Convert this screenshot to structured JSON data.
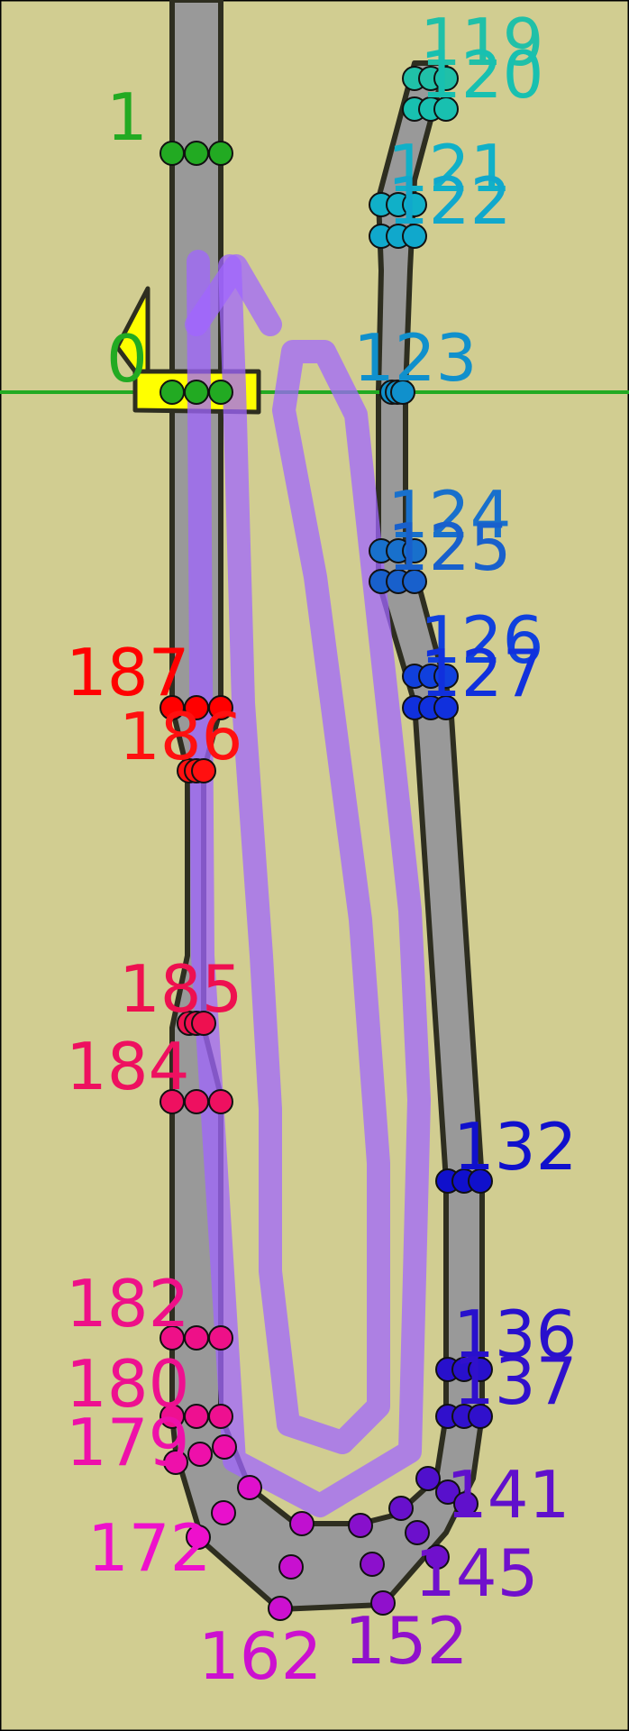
{
  "colors": {
    "background": "#d1cd91",
    "track_fill": "#999999",
    "track_edge": "#2e2e20",
    "finish_line": "#22aa22",
    "start_marker": "#ffff00",
    "path_arrow": "#a066ff"
  },
  "sector_labels": [
    {
      "key": "0",
      "text": "0",
      "color": "#22aa22"
    },
    {
      "key": "1",
      "text": "1",
      "color": "#22aa22"
    },
    {
      "key": "119",
      "text": "119",
      "color": "#20c0a8"
    },
    {
      "key": "120",
      "text": "120",
      "color": "#18c0b0"
    },
    {
      "key": "121",
      "text": "121",
      "color": "#10b0c8"
    },
    {
      "key": "122",
      "text": "122",
      "color": "#10a8cc"
    },
    {
      "key": "123",
      "text": "123",
      "color": "#1090cc"
    },
    {
      "key": "124",
      "text": "124",
      "color": "#1870cc"
    },
    {
      "key": "125",
      "text": "125",
      "color": "#1860cc"
    },
    {
      "key": "126",
      "text": "126",
      "color": "#1040dd"
    },
    {
      "key": "127",
      "text": "127",
      "color": "#1030dd"
    },
    {
      "key": "132",
      "text": "132",
      "color": "#1010cc"
    },
    {
      "key": "136",
      "text": "136",
      "color": "#2810cc"
    },
    {
      "key": "137",
      "text": "137",
      "color": "#3010cc"
    },
    {
      "key": "141",
      "text": "141",
      "color": "#6010cc"
    },
    {
      "key": "145",
      "text": "145",
      "color": "#7010cc"
    },
    {
      "key": "152",
      "text": "152",
      "color": "#9010cc"
    },
    {
      "key": "162",
      "text": "162",
      "color": "#cc10d0"
    },
    {
      "key": "172",
      "text": "172",
      "color": "#ee10cc"
    },
    {
      "key": "179",
      "text": "179",
      "color": "#ee10aa"
    },
    {
      "key": "180",
      "text": "180",
      "color": "#ee1090"
    },
    {
      "key": "182",
      "text": "182",
      "color": "#ee1088"
    },
    {
      "key": "184",
      "text": "184",
      "color": "#ee1060"
    },
    {
      "key": "185",
      "text": "185",
      "color": "#ee1050"
    },
    {
      "key": "186",
      "text": "186",
      "color": "#ff1010"
    },
    {
      "key": "187",
      "text": "187",
      "color": "#ff0000"
    }
  ]
}
